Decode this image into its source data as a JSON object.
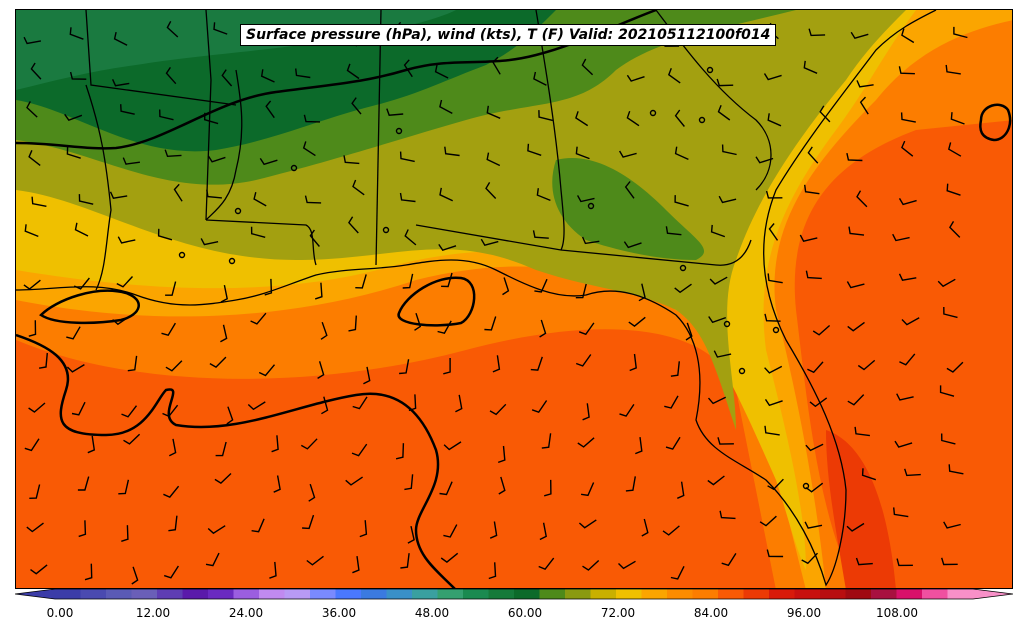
{
  "map": {
    "title": "Surface pressure (hPa), wind (kts), T (F) Valid: 202105112100f014",
    "colors": {
      "t_52": "#1a7a40",
      "t_56": "#0c6a2a",
      "t_60": "#4e8a1a",
      "t_64": "#a3a010",
      "t_68": "#efc000",
      "t_72": "#fba500",
      "t_76": "#fc7d00",
      "t_80": "#f95a05",
      "t_84": "#ec3a05",
      "isobar": "#000000",
      "barb": "#000000",
      "border": "#000000"
    }
  },
  "colorbar": {
    "tick_labels": [
      "0.00",
      "12.00",
      "24.00",
      "36.00",
      "48.00",
      "60.00",
      "72.00",
      "84.00",
      "96.00",
      "108.00"
    ],
    "colors": [
      "#3b3ca8",
      "#4a4ab0",
      "#5a5ab5",
      "#6a5fb8",
      "#5e3db3",
      "#5a1aaa",
      "#6a2ac0",
      "#9b5ee0",
      "#c08af0",
      "#b89af5",
      "#7a8aff",
      "#4a78ff",
      "#3b7ae0",
      "#3a90c8",
      "#3aa0a0",
      "#34a070",
      "#1a8a50",
      "#157a3a",
      "#0c6a2a",
      "#4e8a1a",
      "#8a9a10",
      "#c9b000",
      "#efc000",
      "#fba500",
      "#fc8c00",
      "#fc7d00",
      "#f95a05",
      "#ec3a05",
      "#d81a0a",
      "#c8100e",
      "#b80e10",
      "#a00a12",
      "#a81040",
      "#d8106a",
      "#f050a0",
      "#f890c8"
    ]
  }
}
